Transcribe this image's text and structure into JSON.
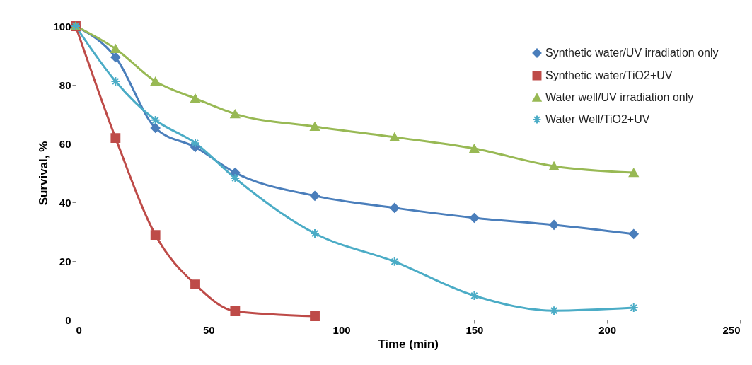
{
  "chart_data": {
    "type": "line",
    "xlabel": "Time (min)",
    "ylabel": "Survival, %",
    "xlim": [
      0,
      250
    ],
    "xticks": [
      0,
      50,
      100,
      150,
      200,
      250
    ],
    "ylim": [
      0,
      100
    ],
    "yticks": [
      0,
      20,
      40,
      60,
      80,
      100
    ],
    "grid": false,
    "legend": "top right",
    "line_style": "solid",
    "series": [
      {
        "name": "Synthetic water/UV irradiation only",
        "color": "#4a7ebb",
        "marker": "diamond",
        "x": [
          0,
          15,
          30,
          45,
          60,
          90,
          120,
          150,
          180,
          210
        ],
        "values": [
          100,
          89.4,
          65.3,
          58.8,
          50.1,
          42.2,
          38.1,
          34.7,
          32.3,
          29.2
        ]
      },
      {
        "name": "Synthetic water/TiO2+UV",
        "color": "#be4b48",
        "marker": "square",
        "x": [
          0,
          15,
          30,
          45,
          60,
          90
        ],
        "values": [
          100,
          61.9,
          28.9,
          12,
          2.9,
          1.2
        ]
      },
      {
        "name": "Water well/UV irradiation only",
        "color": "#98b954",
        "marker": "triangle",
        "x": [
          0,
          15,
          30,
          45,
          60,
          90,
          120,
          150,
          180,
          210
        ],
        "values": [
          100,
          92.3,
          81.2,
          75.4,
          70.1,
          65.8,
          62.2,
          58.3,
          52.3,
          50.1
        ]
      },
      {
        "name": "Water Well/TiO2+UV",
        "color": "#4bacc6",
        "marker": "cross",
        "x": [
          0,
          15,
          30,
          45,
          60,
          90,
          120,
          150,
          180,
          210
        ],
        "values": [
          100,
          81.2,
          68,
          60.2,
          48.2,
          29.4,
          19.8,
          8.2,
          3.1,
          4.1
        ]
      }
    ]
  }
}
